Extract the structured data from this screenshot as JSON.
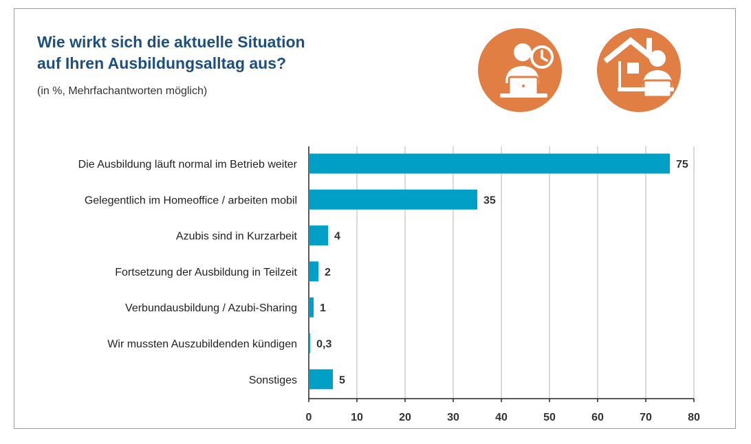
{
  "header": {
    "title_line1": "Wie wirkt sich die aktuelle Situation",
    "title_line2": "auf Ihren Ausbildungsalltag aus?",
    "subtitle": "(in %, Mehrfachantworten möglich)"
  },
  "icons": [
    {
      "name": "person-laptop-clock-icon",
      "color": "#e07e44"
    },
    {
      "name": "home-office-laptop-icon",
      "color": "#e07e44"
    }
  ],
  "chart_data": {
    "type": "bar",
    "orientation": "horizontal",
    "categories": [
      "Die Ausbildung läuft normal im Betrieb weiter",
      "Gelegentlich im Homeoffice / arbeiten mobil",
      "Azubis sind in Kurzarbeit",
      "Fortsetzung der Ausbildung in Teilzeit",
      "Verbundausbildung / Azubi-Sharing",
      "Wir mussten Auszubildenden kündigen",
      "Sonstiges"
    ],
    "values": [
      75,
      35,
      4,
      2,
      1,
      0.3,
      5
    ],
    "value_labels": [
      "75",
      "35",
      "4",
      "2",
      "1",
      "0,3",
      "5"
    ],
    "xlim": [
      0,
      80
    ],
    "ticks": [
      0,
      10,
      20,
      30,
      40,
      50,
      60,
      70,
      80
    ],
    "grid": true,
    "bar_color": "#00a0c6",
    "grid_color": "#b5b5b5"
  }
}
